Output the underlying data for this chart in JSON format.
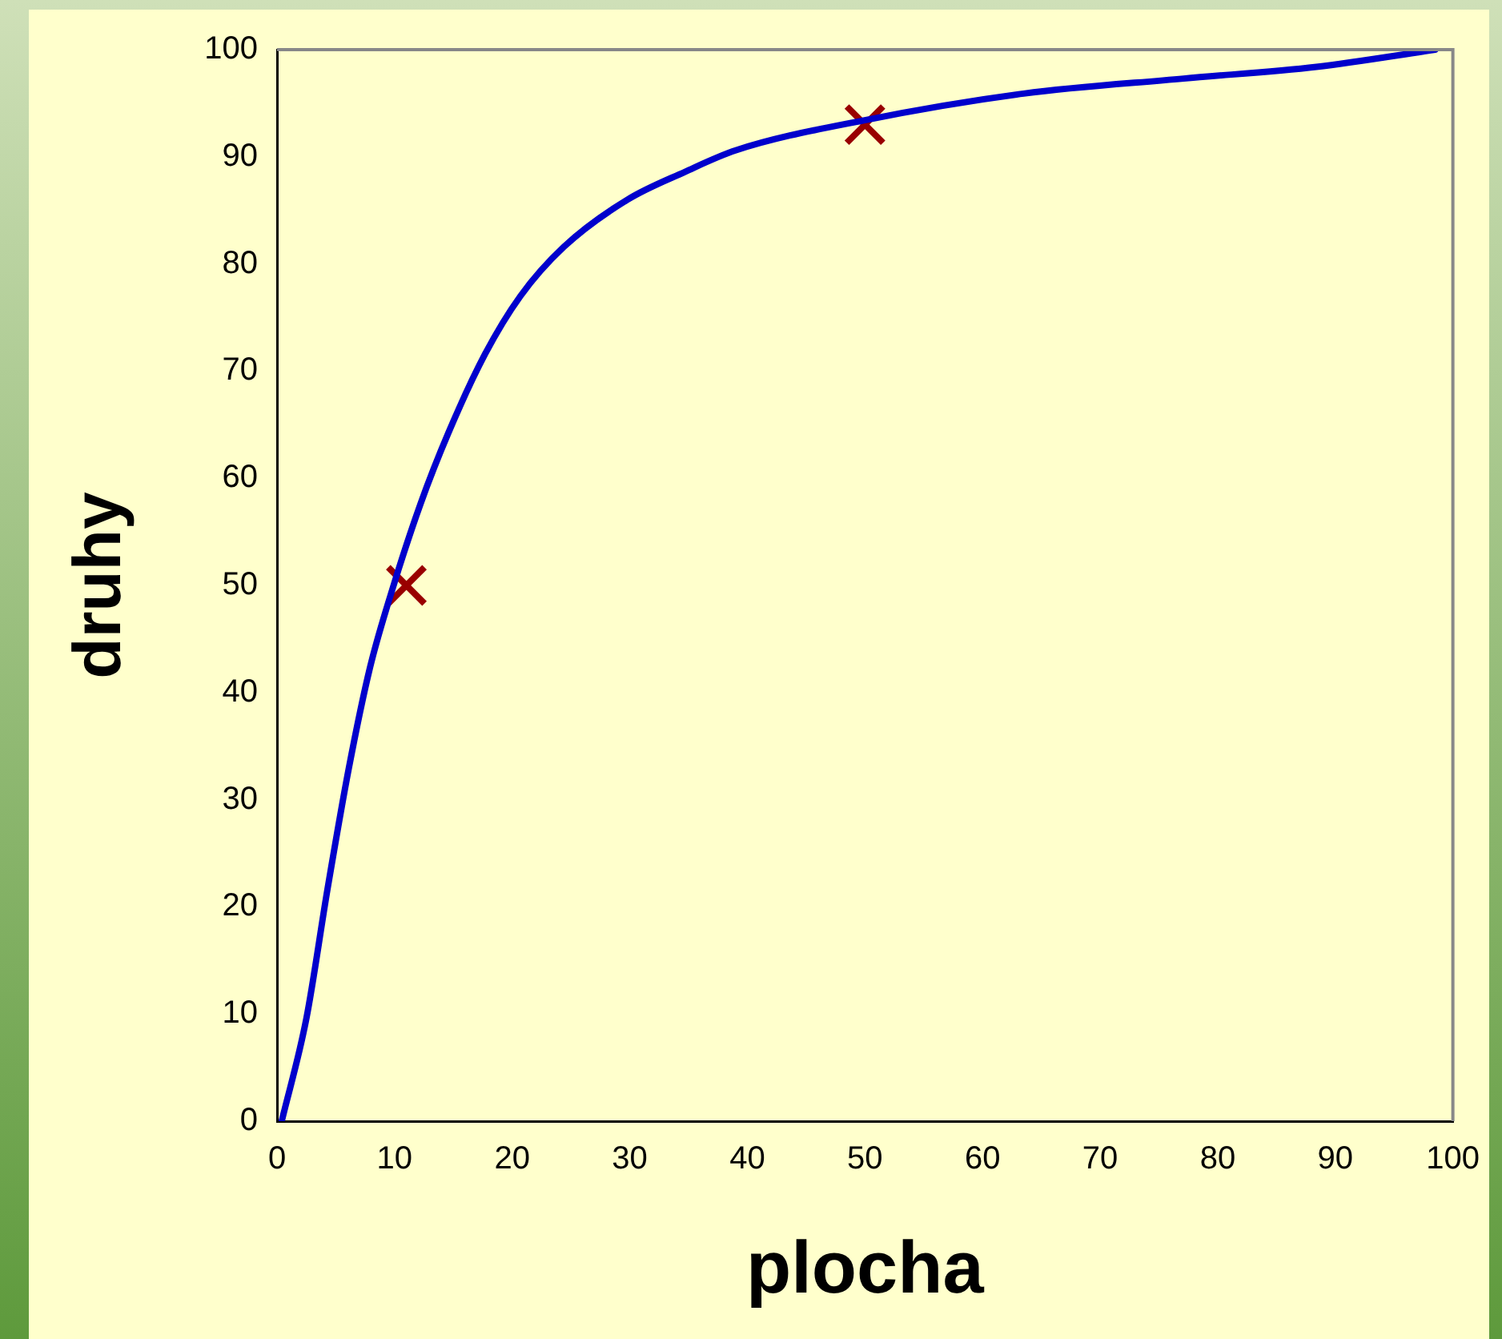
{
  "chart_data": {
    "type": "line",
    "xlabel": "plocha",
    "ylabel": "druhy",
    "xlim": [
      0,
      100
    ],
    "xticks": [
      0,
      10,
      20,
      30,
      40,
      50,
      60,
      70,
      80,
      90,
      100
    ],
    "ylim": [
      0,
      100
    ],
    "yticks": [
      0,
      10,
      20,
      30,
      40,
      50,
      60,
      70,
      80,
      90,
      100
    ],
    "grid": false,
    "legend": false,
    "series": [
      {
        "color": "#0000cc",
        "marker": "none",
        "x": [
          0.4,
          2.5,
          4.3,
          6.1,
          7.9,
          9.8,
          12.2,
          14.6,
          17.7,
          20.7,
          24.4,
          29.8,
          34.7,
          39,
          49.9,
          63.5,
          77.1,
          88.4,
          98.5
        ],
        "values": [
          0,
          9.6,
          21.7,
          32.9,
          42.3,
          49.6,
          57.6,
          64.3,
          71.6,
          77,
          81.6,
          86,
          88.6,
          90.6,
          93.4,
          95.9,
          97.3,
          98.4,
          100
        ]
      },
      {
        "type": "scatter",
        "color": "#990000",
        "marker": "cross",
        "x": [
          11,
          50
        ],
        "values": [
          50,
          93
        ]
      }
    ]
  }
}
